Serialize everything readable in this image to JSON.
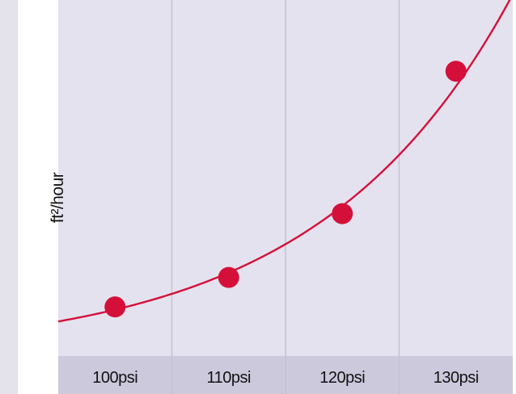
{
  "chart_data": {
    "type": "line",
    "categories": [
      "100psi",
      "110psi",
      "120psi",
      "130psi"
    ],
    "ylabel": "ft²/hour",
    "xlabel": "",
    "title": "",
    "series": [
      {
        "values": [
          1.0,
          1.6,
          2.9,
          5.8
        ]
      }
    ],
    "ylim": [
      0,
      7.25
    ],
    "grid": "vertical",
    "colors": {
      "plot_bg": "#e5e2ef",
      "axis_band": "#cdc9dd",
      "grid": "#c6c2d4",
      "line": "#d4103a",
      "marker": "#d4103a"
    }
  }
}
